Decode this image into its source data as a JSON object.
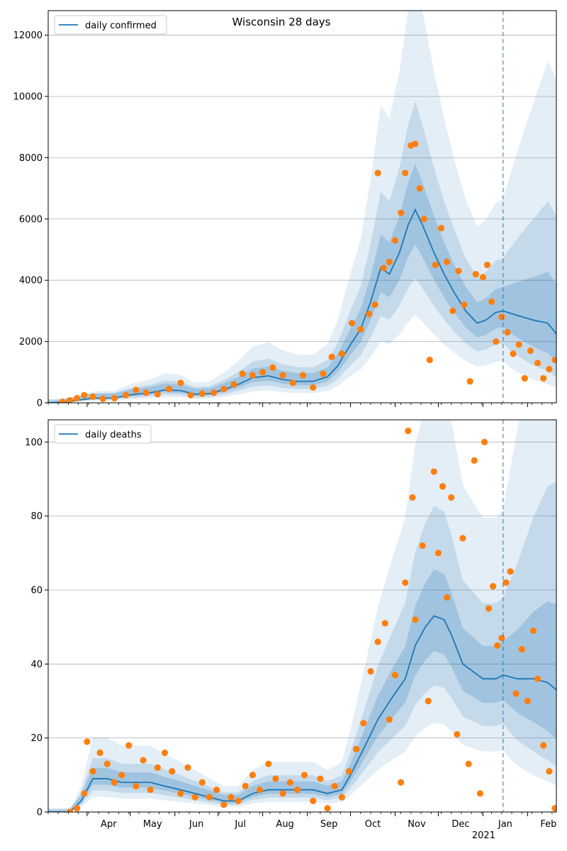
{
  "title": "Wisconsin 28 days",
  "colors": {
    "line": "#1f77b4",
    "points": "#ff7f0e",
    "band": "#1f77b4",
    "grid": "#b0b0b0",
    "vline": "#1f77b4"
  },
  "x_axis": {
    "month_labels": [
      "Apr",
      "May",
      "Jun",
      "Jul",
      "Aug",
      "Sep",
      "Oct",
      "Nov",
      "Dec",
      "Jan",
      "Feb"
    ],
    "year_label": "2021",
    "start": "2020-03-05",
    "end": "2021-02-21",
    "forecast_date": "2021-01-15"
  },
  "chart_data": [
    {
      "type": "line",
      "legend": "daily confirmed",
      "legend_position": "top-left",
      "ylim": [
        0,
        12800
      ],
      "yticks": [
        0,
        2000,
        4000,
        6000,
        8000,
        10000,
        12000
      ],
      "grid": "horizontal",
      "model_points": [
        [
          "2020-03-05",
          0
        ],
        [
          "2020-03-15",
          20
        ],
        [
          "2020-03-25",
          80
        ],
        [
          "2020-04-05",
          150
        ],
        [
          "2020-04-20",
          160
        ],
        [
          "2020-05-01",
          260
        ],
        [
          "2020-05-15",
          330
        ],
        [
          "2020-05-25",
          420
        ],
        [
          "2020-06-05",
          400
        ],
        [
          "2020-06-15",
          280
        ],
        [
          "2020-06-25",
          300
        ],
        [
          "2020-07-05",
          430
        ],
        [
          "2020-07-15",
          600
        ],
        [
          "2020-07-25",
          820
        ],
        [
          "2020-08-05",
          880
        ],
        [
          "2020-08-15",
          760
        ],
        [
          "2020-08-25",
          700
        ],
        [
          "2020-09-05",
          700
        ],
        [
          "2020-09-15",
          850
        ],
        [
          "2020-09-22",
          1200
        ],
        [
          "2020-10-01",
          1900
        ],
        [
          "2020-10-08",
          2400
        ],
        [
          "2020-10-15",
          3300
        ],
        [
          "2020-10-22",
          4400
        ],
        [
          "2020-10-28",
          4200
        ],
        [
          "2020-11-04",
          4900
        ],
        [
          "2020-11-10",
          5800
        ],
        [
          "2020-11-15",
          6300
        ],
        [
          "2020-11-20",
          5800
        ],
        [
          "2020-11-28",
          4900
        ],
        [
          "2020-12-05",
          4200
        ],
        [
          "2020-12-12",
          3600
        ],
        [
          "2020-12-20",
          3000
        ],
        [
          "2020-12-28",
          2600
        ],
        [
          "2021-01-03",
          2700
        ],
        [
          "2021-01-10",
          2950
        ],
        [
          "2021-01-15",
          3000
        ],
        [
          "2021-01-25",
          2850
        ],
        [
          "2021-02-05",
          2700
        ],
        [
          "2021-02-15",
          2600
        ],
        [
          "2021-02-21",
          2250
        ]
      ],
      "observed_points": [
        [
          "2020-03-15",
          30
        ],
        [
          "2020-03-20",
          80
        ],
        [
          "2020-03-25",
          150
        ],
        [
          "2020-03-30",
          250
        ],
        [
          "2020-04-05",
          200
        ],
        [
          "2020-04-12",
          130
        ],
        [
          "2020-04-20",
          150
        ],
        [
          "2020-04-28",
          250
        ],
        [
          "2020-05-05",
          420
        ],
        [
          "2020-05-12",
          330
        ],
        [
          "2020-05-20",
          280
        ],
        [
          "2020-05-28",
          450
        ],
        [
          "2020-06-05",
          650
        ],
        [
          "2020-06-12",
          250
        ],
        [
          "2020-06-20",
          300
        ],
        [
          "2020-06-28",
          330
        ],
        [
          "2020-07-05",
          450
        ],
        [
          "2020-07-12",
          600
        ],
        [
          "2020-07-18",
          950
        ],
        [
          "2020-07-25",
          900
        ],
        [
          "2020-08-01",
          1000
        ],
        [
          "2020-08-08",
          1150
        ],
        [
          "2020-08-15",
          900
        ],
        [
          "2020-08-22",
          650
        ],
        [
          "2020-08-29",
          900
        ],
        [
          "2020-09-05",
          500
        ],
        [
          "2020-09-12",
          950
        ],
        [
          "2020-09-18",
          1500
        ],
        [
          "2020-09-25",
          1600
        ],
        [
          "2020-10-02",
          2600
        ],
        [
          "2020-10-08",
          2400
        ],
        [
          "2020-10-14",
          2900
        ],
        [
          "2020-10-18",
          3200
        ],
        [
          "2020-10-20",
          7500
        ],
        [
          "2020-10-24",
          4400
        ],
        [
          "2020-10-28",
          4600
        ],
        [
          "2020-11-01",
          5300
        ],
        [
          "2020-11-05",
          6200
        ],
        [
          "2020-11-08",
          7500
        ],
        [
          "2020-11-12",
          8400
        ],
        [
          "2020-11-15",
          8450
        ],
        [
          "2020-11-18",
          7000
        ],
        [
          "2020-11-21",
          6000
        ],
        [
          "2020-11-25",
          1400
        ],
        [
          "2020-11-29",
          4500
        ],
        [
          "2020-12-03",
          5700
        ],
        [
          "2020-12-07",
          4600
        ],
        [
          "2020-12-11",
          3000
        ],
        [
          "2020-12-15",
          4300
        ],
        [
          "2020-12-19",
          3200
        ],
        [
          "2020-12-23",
          700
        ],
        [
          "2020-12-27",
          4200
        ],
        [
          "2021-01-01",
          4100
        ],
        [
          "2021-01-04",
          4500
        ],
        [
          "2021-01-07",
          3300
        ],
        [
          "2021-01-10",
          2000
        ],
        [
          "2021-01-14",
          2800
        ],
        [
          "2021-01-18",
          2300
        ],
        [
          "2021-01-22",
          1600
        ],
        [
          "2021-01-26",
          1900
        ],
        [
          "2021-01-30",
          800
        ],
        [
          "2021-02-03",
          1700
        ],
        [
          "2021-02-08",
          1300
        ],
        [
          "2021-02-12",
          800
        ],
        [
          "2021-02-16",
          1100
        ],
        [
          "2021-02-20",
          1400
        ]
      ]
    },
    {
      "type": "line",
      "legend": "daily deaths",
      "legend_position": "top-left",
      "ylim": [
        0,
        106
      ],
      "yticks": [
        0,
        20,
        40,
        60,
        80,
        100
      ],
      "grid": "horizontal",
      "model_points": [
        [
          "2020-03-05",
          0
        ],
        [
          "2020-03-20",
          0
        ],
        [
          "2020-03-28",
          3
        ],
        [
          "2020-04-05",
          9
        ],
        [
          "2020-04-15",
          9
        ],
        [
          "2020-04-25",
          8
        ],
        [
          "2020-05-05",
          8
        ],
        [
          "2020-05-15",
          8
        ],
        [
          "2020-05-25",
          7
        ],
        [
          "2020-06-05",
          6
        ],
        [
          "2020-06-15",
          5
        ],
        [
          "2020-06-25",
          4
        ],
        [
          "2020-07-05",
          3
        ],
        [
          "2020-07-15",
          3
        ],
        [
          "2020-07-25",
          5
        ],
        [
          "2020-08-05",
          6
        ],
        [
          "2020-08-15",
          6
        ],
        [
          "2020-08-25",
          6
        ],
        [
          "2020-09-05",
          6
        ],
        [
          "2020-09-15",
          5
        ],
        [
          "2020-09-25",
          6
        ],
        [
          "2020-10-01",
          10
        ],
        [
          "2020-10-10",
          17
        ],
        [
          "2020-10-20",
          25
        ],
        [
          "2020-10-30",
          31
        ],
        [
          "2020-11-08",
          36
        ],
        [
          "2020-11-15",
          45
        ],
        [
          "2020-11-22",
          50
        ],
        [
          "2020-11-28",
          53
        ],
        [
          "2020-12-05",
          52
        ],
        [
          "2020-12-10",
          48
        ],
        [
          "2020-12-18",
          40
        ],
        [
          "2020-12-25",
          38
        ],
        [
          "2021-01-01",
          36
        ],
        [
          "2021-01-10",
          36
        ],
        [
          "2021-01-15",
          37
        ],
        [
          "2021-01-25",
          36
        ],
        [
          "2021-02-05",
          36
        ],
        [
          "2021-02-15",
          35
        ],
        [
          "2021-02-21",
          33
        ]
      ],
      "observed_points": [
        [
          "2020-03-20",
          0
        ],
        [
          "2020-03-25",
          1
        ],
        [
          "2020-03-30",
          5
        ],
        [
          "2020-04-01",
          19
        ],
        [
          "2020-04-05",
          11
        ],
        [
          "2020-04-10",
          16
        ],
        [
          "2020-04-15",
          13
        ],
        [
          "2020-04-20",
          8
        ],
        [
          "2020-04-25",
          10
        ],
        [
          "2020-04-30",
          18
        ],
        [
          "2020-05-05",
          7
        ],
        [
          "2020-05-10",
          14
        ],
        [
          "2020-05-15",
          6
        ],
        [
          "2020-05-20",
          12
        ],
        [
          "2020-05-25",
          16
        ],
        [
          "2020-05-30",
          11
        ],
        [
          "2020-06-05",
          5
        ],
        [
          "2020-06-10",
          12
        ],
        [
          "2020-06-15",
          4
        ],
        [
          "2020-06-20",
          8
        ],
        [
          "2020-06-25",
          4
        ],
        [
          "2020-06-30",
          6
        ],
        [
          "2020-07-05",
          2
        ],
        [
          "2020-07-10",
          4
        ],
        [
          "2020-07-15",
          3
        ],
        [
          "2020-07-20",
          7
        ],
        [
          "2020-07-25",
          10
        ],
        [
          "2020-07-30",
          6
        ],
        [
          "2020-08-05",
          13
        ],
        [
          "2020-08-10",
          9
        ],
        [
          "2020-08-15",
          5
        ],
        [
          "2020-08-20",
          8
        ],
        [
          "2020-08-25",
          6
        ],
        [
          "2020-08-30",
          10
        ],
        [
          "2020-09-05",
          3
        ],
        [
          "2020-09-10",
          9
        ],
        [
          "2020-09-15",
          1
        ],
        [
          "2020-09-20",
          7
        ],
        [
          "2020-09-25",
          4
        ],
        [
          "2020-09-30",
          11
        ],
        [
          "2020-10-05",
          17
        ],
        [
          "2020-10-10",
          24
        ],
        [
          "2020-10-15",
          38
        ],
        [
          "2020-10-20",
          46
        ],
        [
          "2020-10-25",
          51
        ],
        [
          "2020-10-28",
          25
        ],
        [
          "2020-11-01",
          37
        ],
        [
          "2020-11-05",
          8
        ],
        [
          "2020-11-08",
          62
        ],
        [
          "2020-11-10",
          103
        ],
        [
          "2020-11-13",
          85
        ],
        [
          "2020-11-15",
          52
        ],
        [
          "2020-11-20",
          72
        ],
        [
          "2020-11-24",
          30
        ],
        [
          "2020-11-28",
          92
        ],
        [
          "2020-12-01",
          70
        ],
        [
          "2020-12-04",
          88
        ],
        [
          "2020-12-07",
          58
        ],
        [
          "2020-12-10",
          85
        ],
        [
          "2020-12-14",
          21
        ],
        [
          "2020-12-18",
          74
        ],
        [
          "2020-12-22",
          13
        ],
        [
          "2020-12-26",
          95
        ],
        [
          "2020-12-30",
          5
        ],
        [
          "2021-01-02",
          100
        ],
        [
          "2021-01-05",
          55
        ],
        [
          "2021-01-08",
          61
        ],
        [
          "2021-01-11",
          45
        ],
        [
          "2021-01-14",
          47
        ],
        [
          "2021-01-17",
          62
        ],
        [
          "2021-01-20",
          65
        ],
        [
          "2021-01-24",
          32
        ],
        [
          "2021-01-28",
          44
        ],
        [
          "2021-02-01",
          30
        ],
        [
          "2021-02-05",
          49
        ],
        [
          "2021-02-08",
          36
        ],
        [
          "2021-02-12",
          18
        ],
        [
          "2021-02-16",
          11
        ],
        [
          "2021-02-20",
          1
        ]
      ]
    }
  ]
}
